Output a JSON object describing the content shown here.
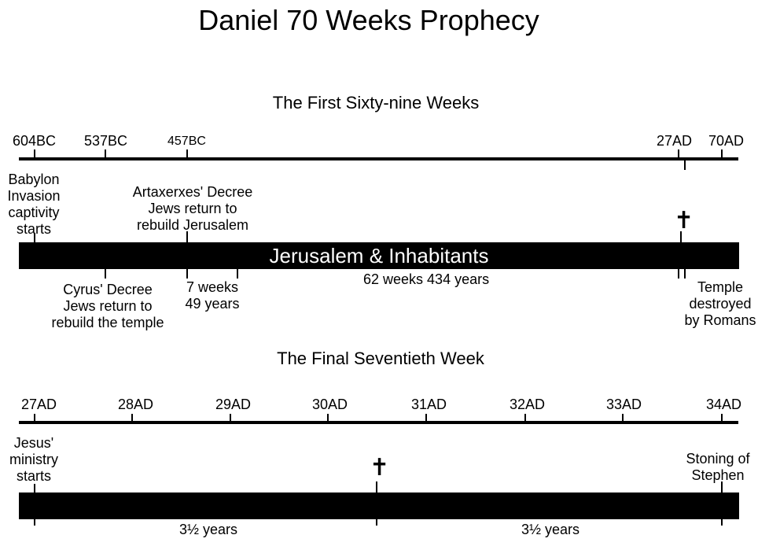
{
  "title": "Daniel 70 Weeks Prophecy",
  "section1": {
    "heading": "The First Sixty-nine Weeks",
    "axis_labels": [
      "604BC",
      "537BC",
      "457BC",
      "27AD",
      "70AD"
    ],
    "bar_label": "Jerusalem & Inhabitants",
    "events": {
      "babylon": "Babylon\nInvasion\ncaptivity\nstarts",
      "artaxerxes": "Artaxerxes' Decree\nJews return to\nrebuild Jerusalem",
      "cyrus": "Cyrus' Decree\nJews return to\nrebuild the temple",
      "seven_weeks": "7 weeks\n49 years",
      "sixty_two": "62 weeks 434 years",
      "temple": "Temple\ndestroyed\nby Romans"
    },
    "cross_icon": "✝"
  },
  "section2": {
    "heading": "The Final Seventieth Week",
    "axis_labels": [
      "27AD",
      "28AD",
      "29AD",
      "30AD",
      "31AD",
      "32AD",
      "33AD",
      "34AD"
    ],
    "events": {
      "jesus": "Jesus'\nministry\nstarts",
      "stephen": "Stoning of\nStephen",
      "half1": "3½ years",
      "half2": "3½ years"
    },
    "cross_icon": "✝"
  }
}
